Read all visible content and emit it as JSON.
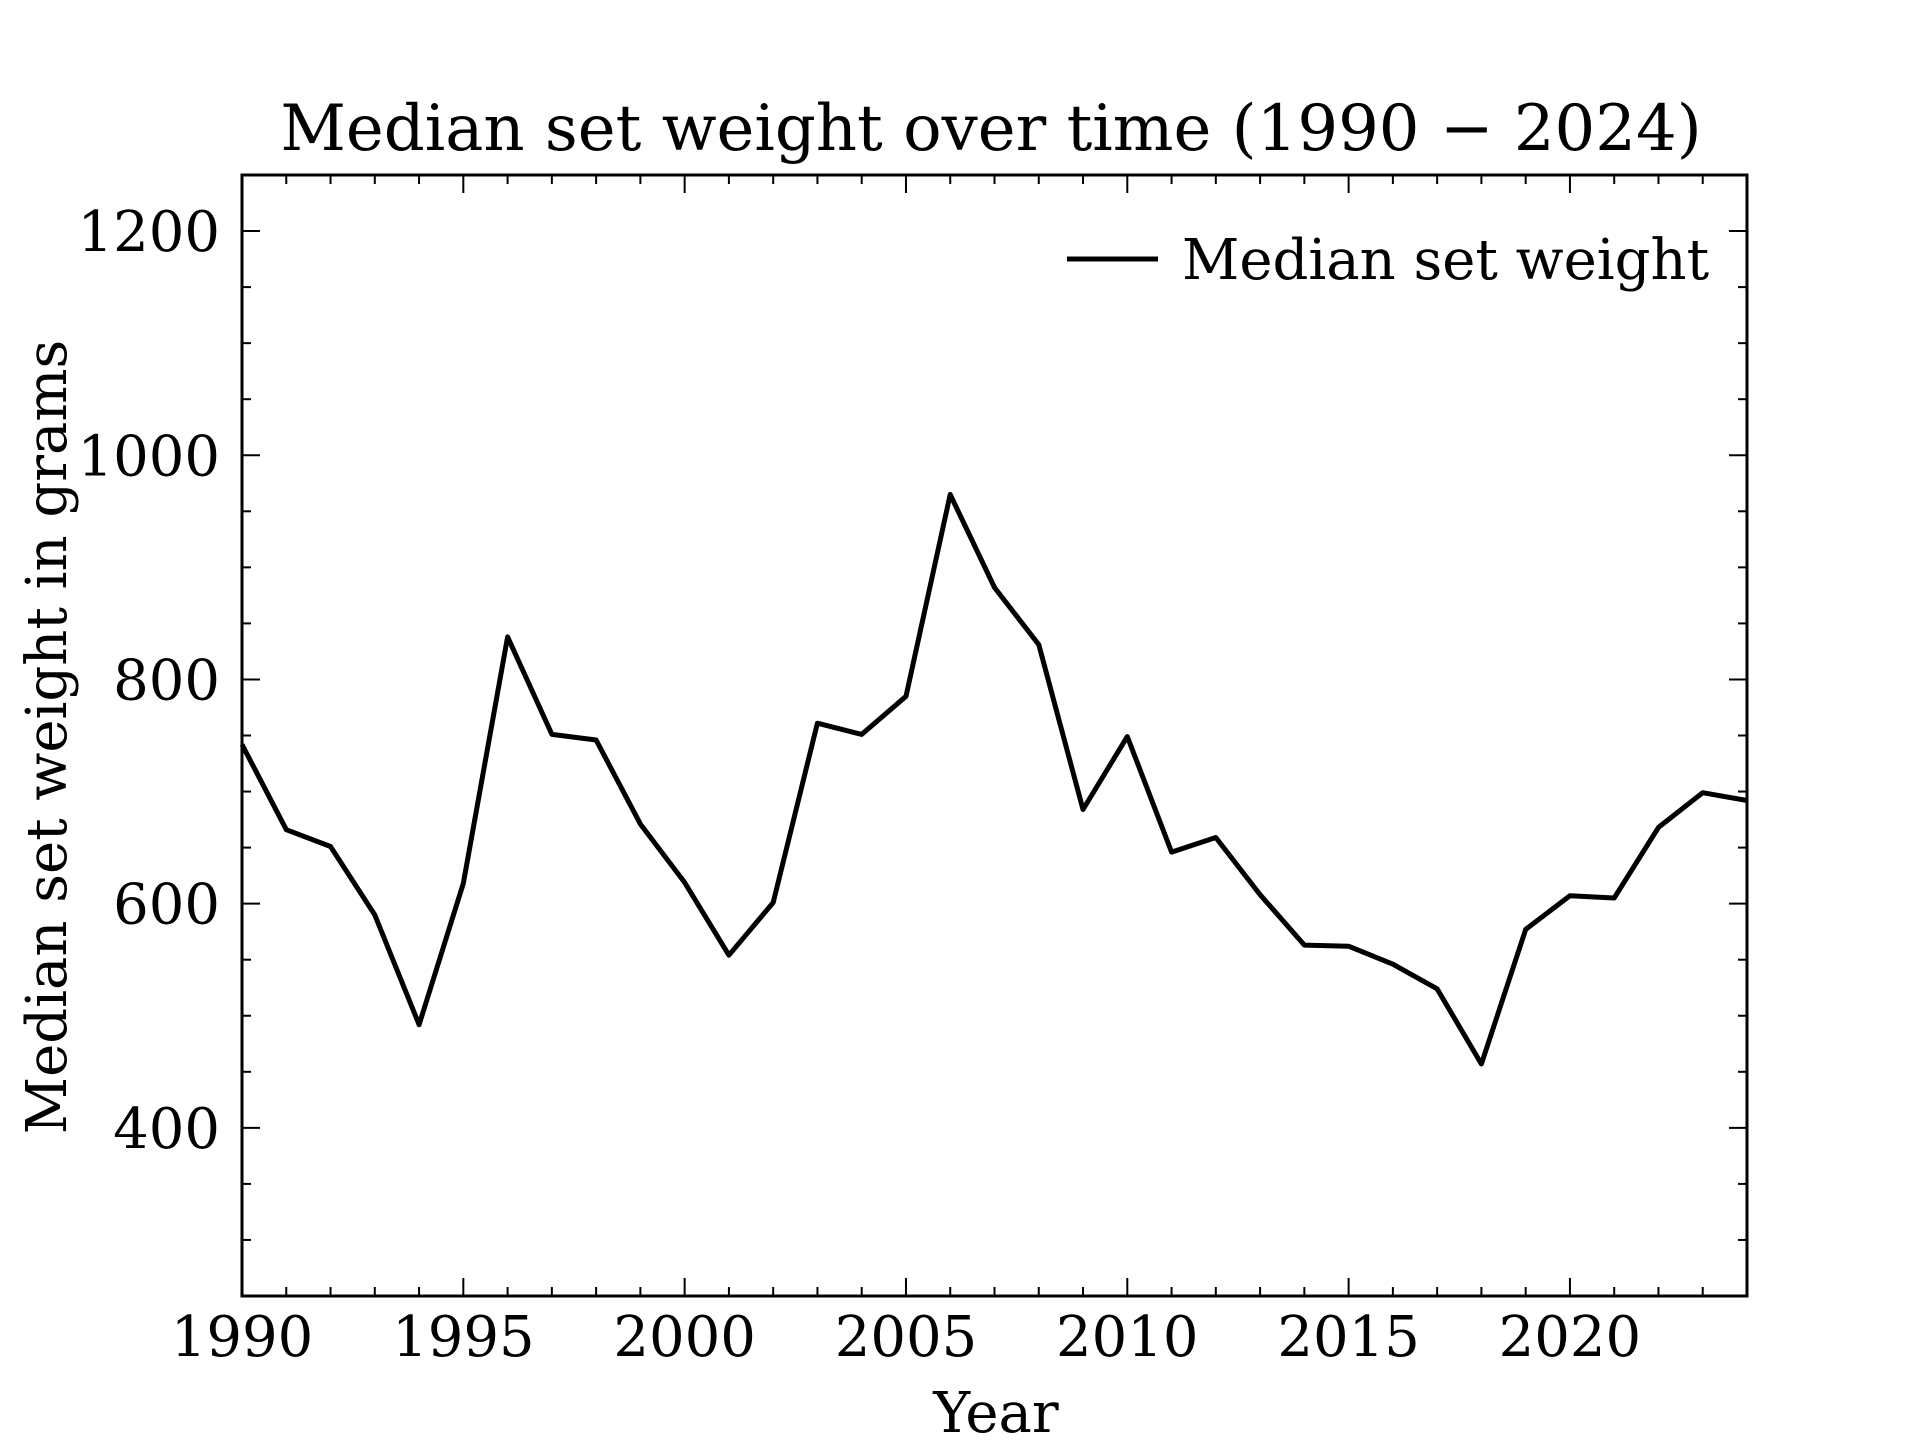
{
  "chart_data": {
    "type": "line",
    "title": "Median set weight over time (1990 − 2024)",
    "xlabel": "Year",
    "ylabel": "Median set weight in grams",
    "xlim": [
      1990,
      2024
    ],
    "ylim": [
      250,
      1250
    ],
    "x_ticks": [
      1990,
      1995,
      2000,
      2005,
      2010,
      2015,
      2020
    ],
    "y_ticks": [
      400,
      600,
      800,
      1000,
      1200
    ],
    "grid": false,
    "legend_position": "top-right",
    "line_color": "#000000",
    "series": [
      {
        "name": "Median set weight",
        "x": [
          1990,
          1991,
          1992,
          1993,
          1994,
          1995,
          1996,
          1997,
          1998,
          1999,
          2000,
          2001,
          2002,
          2003,
          2004,
          2005,
          2006,
          2007,
          2008,
          2009,
          2010,
          2011,
          2012,
          2013,
          2014,
          2015,
          2016,
          2017,
          2018,
          2019,
          2020,
          2021,
          2022,
          2023,
          2024
        ],
        "values": [
          742,
          666,
          651,
          590,
          492,
          618,
          838,
          751,
          746,
          671,
          619,
          554,
          601,
          761,
          751,
          785,
          965,
          882,
          831,
          684,
          749,
          646,
          659,
          608,
          563,
          562,
          546,
          524,
          457,
          577,
          607,
          605,
          668,
          699,
          692
        ]
      }
    ]
  }
}
